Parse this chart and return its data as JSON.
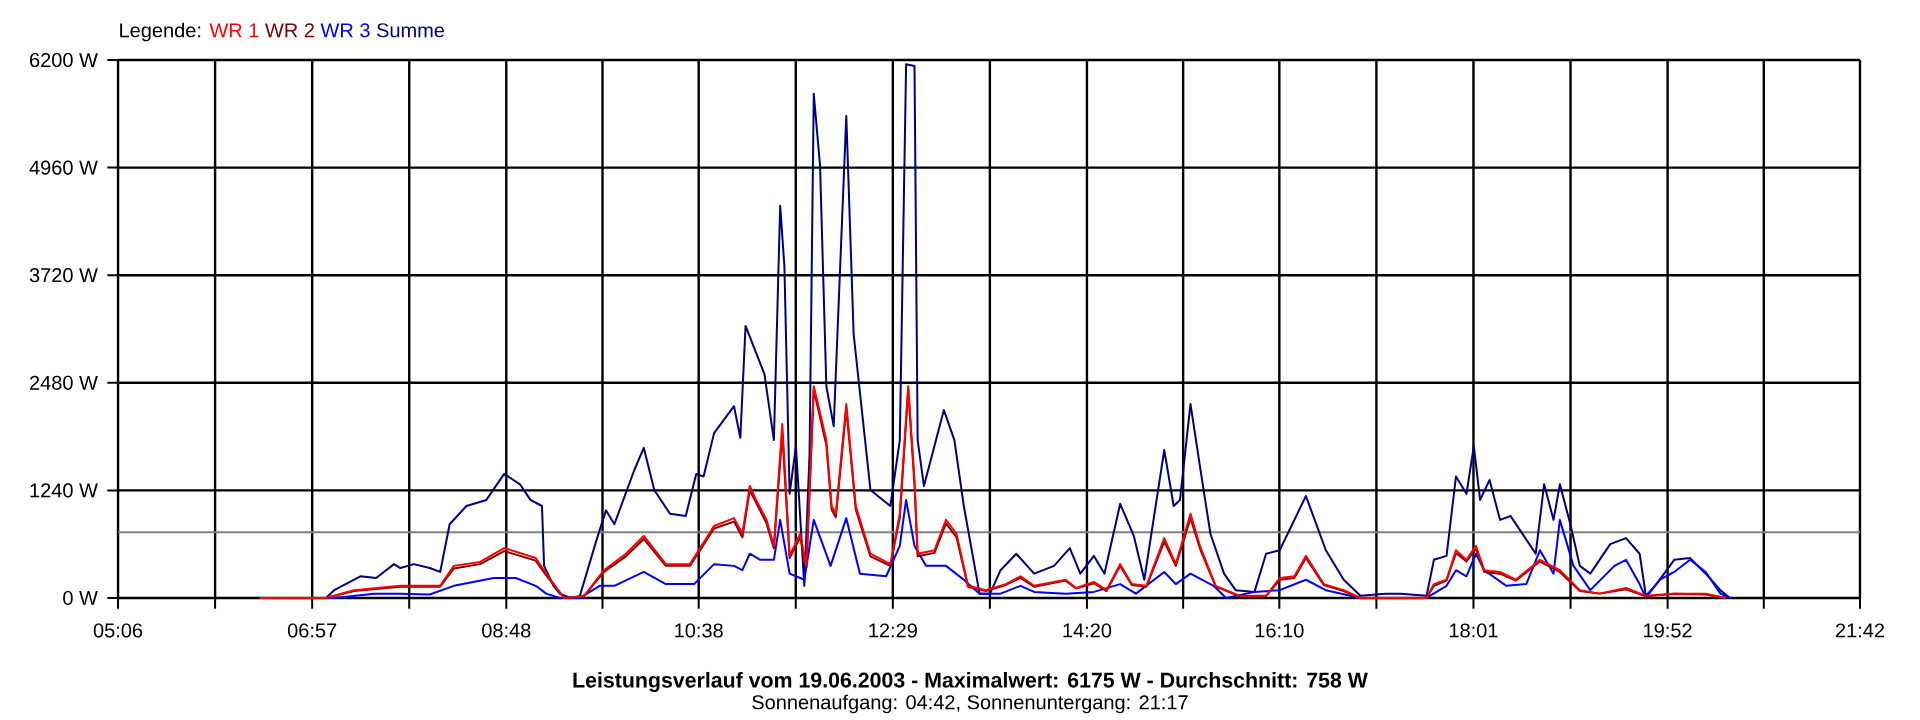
{
  "chart_data": {
    "type": "line",
    "title": "Leistungsverlauf vom 19.06.2003 - Maximalwert: 6175 W - Durchschnitt: 758 W",
    "subtitle": "Sonnenaufgang: 04:42, Sonnenuntergang: 21:17",
    "legend_title": "Legende:",
    "legend": "top left",
    "grid": true,
    "xlim": [
      5.1,
      21.7
    ],
    "xticks": [
      {
        "value": 5.1,
        "label": "05:06"
      },
      {
        "value": 6.025,
        "label": null
      },
      {
        "value": 6.95,
        "label": "06:57"
      },
      {
        "value": 7.875,
        "label": null
      },
      {
        "value": 8.8,
        "label": "08:48"
      },
      {
        "value": 9.7167,
        "label": null
      },
      {
        "value": 10.6333,
        "label": "10:38"
      },
      {
        "value": 11.5583,
        "label": null
      },
      {
        "value": 12.4833,
        "label": "12:29"
      },
      {
        "value": 13.4083,
        "label": null
      },
      {
        "value": 14.3333,
        "label": "14:20"
      },
      {
        "value": 15.25,
        "label": null
      },
      {
        "value": 16.1667,
        "label": "16:10"
      },
      {
        "value": 17.0917,
        "label": null
      },
      {
        "value": 18.0167,
        "label": "18:01"
      },
      {
        "value": 18.9417,
        "label": null
      },
      {
        "value": 19.8667,
        "label": "19:52"
      },
      {
        "value": 20.7833,
        "label": null
      },
      {
        "value": 21.7,
        "label": "21:42"
      }
    ],
    "ylim": [
      0,
      6200
    ],
    "yticks": [
      {
        "value": 0,
        "label": "0 W"
      },
      {
        "value": 1240,
        "label": "1240 W"
      },
      {
        "value": 2480,
        "label": "2480 W"
      },
      {
        "value": 3720,
        "label": "3720 W"
      },
      {
        "value": 4960,
        "label": "4960 W"
      },
      {
        "value": 6200,
        "label": "6200 W"
      }
    ],
    "ref_lines": [
      {
        "axis": "y",
        "value": 758,
        "color": "#808080"
      }
    ],
    "series": [
      {
        "name": "WR 1",
        "color": "#ff0000",
        "x": [
          6.45,
          7.08,
          7.35,
          7.79,
          8.07,
          8.17,
          8.3,
          8.55,
          8.78,
          9.08,
          9.18,
          9.35,
          9.54,
          9.73,
          9.94,
          10.11,
          10.32,
          10.55,
          10.78,
          10.97,
          11.05,
          11.12,
          11.18,
          11.28,
          11.35,
          11.43,
          11.5,
          11.6,
          11.66,
          11.73,
          11.85,
          11.9,
          11.94,
          12.04,
          12.13,
          12.27,
          12.46,
          12.55,
          12.63,
          12.69,
          12.72,
          12.88,
          12.99,
          13.09,
          13.2,
          13.37,
          13.56,
          13.7,
          13.83,
          14.13,
          14.23,
          14.4,
          14.52,
          14.65,
          14.76,
          14.9,
          15.07,
          15.18,
          15.32,
          15.41,
          15.56,
          15.79,
          16.04,
          16.17,
          16.31,
          16.42,
          16.59,
          16.78,
          16.94,
          17.57,
          17.64,
          17.76,
          17.85,
          17.95,
          18.04,
          18.12,
          18.27,
          18.42,
          18.65,
          18.84,
          19.03,
          19.22,
          19.47,
          19.66,
          19.93,
          20.23,
          20.42
        ],
        "values": [
          0,
          0,
          90,
          140,
          140,
          140,
          370,
          415,
          575,
          460,
          280,
          0,
          20,
          320,
          510,
          715,
          390,
          390,
          830,
          920,
          740,
          1290,
          1130,
          900,
          600,
          2005,
          485,
          740,
          370,
          2440,
          1820,
          1060,
          970,
          2235,
          1060,
          510,
          390,
          970,
          2440,
          1360,
          510,
          550,
          900,
          740,
          140,
          90,
          160,
          250,
          140,
          210,
          115,
          185,
          90,
          390,
          160,
          140,
          690,
          390,
          970,
          600,
          140,
          25,
          25,
          230,
          250,
          485,
          160,
          90,
          0,
          0,
          160,
          210,
          550,
          440,
          600,
          320,
          300,
          210,
          440,
          320,
          90,
          50,
          115,
          25,
          50,
          50,
          0
        ]
      },
      {
        "name": "WR 2",
        "color": "#800000",
        "x": [
          6.45,
          7.08,
          7.35,
          7.79,
          8.07,
          8.17,
          8.3,
          8.55,
          8.78,
          9.08,
          9.18,
          9.35,
          9.54,
          9.73,
          9.94,
          10.11,
          10.32,
          10.55,
          10.78,
          10.97,
          11.05,
          11.12,
          11.18,
          11.28,
          11.35,
          11.43,
          11.5,
          11.6,
          11.66,
          11.73,
          11.85,
          11.9,
          11.94,
          12.04,
          12.13,
          12.27,
          12.46,
          12.55,
          12.63,
          12.69,
          12.72,
          12.88,
          12.99,
          13.09,
          13.2,
          13.37,
          13.56,
          13.7,
          13.83,
          14.13,
          14.23,
          14.4,
          14.52,
          14.65,
          14.76,
          14.9,
          15.07,
          15.18,
          15.32,
          15.41,
          15.56,
          15.79,
          16.04,
          16.17,
          16.31,
          16.42,
          16.59,
          16.78,
          16.94,
          17.57,
          17.64,
          17.76,
          17.85,
          17.95,
          18.04,
          18.12,
          18.27,
          18.42,
          18.65,
          18.84,
          19.03,
          19.22,
          19.47,
          19.66,
          19.93,
          20.23,
          20.42
        ],
        "values": [
          0,
          0,
          80,
          130,
          130,
          130,
          340,
          390,
          540,
          430,
          260,
          0,
          20,
          300,
          480,
          680,
          370,
          370,
          800,
          880,
          700,
          1240,
          1100,
          860,
          570,
          1900,
          460,
          700,
          350,
          2400,
          1760,
          1020,
          930,
          2180,
          1020,
          480,
          370,
          930,
          2400,
          1300,
          480,
          520,
          860,
          700,
          130,
          80,
          150,
          230,
          130,
          200,
          110,
          170,
          80,
          370,
          150,
          130,
          650,
          370,
          920,
          570,
          130,
          20,
          20,
          210,
          230,
          460,
          150,
          80,
          0,
          0,
          140,
          200,
          520,
          420,
          570,
          300,
          280,
          200,
          420,
          300,
          80,
          50,
          100,
          20,
          50,
          40,
          0
        ]
      },
      {
        "name": "WR 3",
        "color": "#0000ff",
        "x": [
          6.45,
          7.16,
          7.54,
          7.79,
          8.07,
          8.3,
          8.68,
          8.89,
          9.08,
          9.18,
          9.31,
          9.5,
          9.69,
          9.83,
          10.11,
          10.32,
          10.59,
          10.78,
          10.97,
          11.05,
          11.12,
          11.22,
          11.35,
          11.41,
          11.5,
          11.64,
          11.73,
          11.89,
          12.04,
          12.17,
          12.42,
          12.55,
          12.61,
          12.69,
          12.8,
          12.99,
          13.16,
          13.31,
          13.51,
          13.7,
          13.83,
          14.13,
          14.4,
          14.65,
          14.8,
          15.07,
          15.18,
          15.32,
          15.54,
          15.66,
          15.93,
          16.17,
          16.42,
          16.61,
          16.94,
          17.57,
          17.76,
          17.85,
          17.95,
          18.04,
          18.12,
          18.33,
          18.52,
          18.65,
          18.78,
          18.84,
          18.97,
          19.13,
          19.36,
          19.47,
          19.6,
          19.66,
          19.79,
          19.93,
          20.08,
          20.23,
          20.37,
          20.46
        ],
        "values": [
          0,
          0,
          50,
          50,
          40,
          140,
          230,
          230,
          140,
          50,
          0,
          0,
          140,
          140,
          300,
          160,
          160,
          390,
          370,
          320,
          510,
          440,
          440,
          900,
          280,
          210,
          900,
          370,
          920,
          280,
          250,
          600,
          1130,
          600,
          370,
          370,
          210,
          50,
          50,
          140,
          70,
          50,
          70,
          160,
          50,
          300,
          160,
          280,
          140,
          0,
          70,
          90,
          210,
          90,
          0,
          0,
          140,
          320,
          250,
          510,
          320,
          140,
          160,
          550,
          280,
          900,
          370,
          90,
          370,
          440,
          160,
          0,
          210,
          300,
          440,
          300,
          50,
          0
        ]
      },
      {
        "name": "Summe",
        "color": "#000080",
        "x": [
          6.45,
          7.08,
          7.16,
          7.41,
          7.56,
          7.73,
          7.79,
          7.92,
          8.07,
          8.17,
          8.26,
          8.42,
          8.61,
          8.78,
          8.93,
          9.03,
          9.14,
          9.16,
          9.25,
          9.31,
          9.41,
          9.5,
          9.66,
          9.75,
          9.83,
          10.02,
          10.11,
          10.21,
          10.36,
          10.51,
          10.61,
          10.68,
          10.78,
          10.97,
          11.03,
          11.08,
          11.26,
          11.35,
          11.41,
          11.45,
          11.5,
          11.56,
          11.64,
          11.69,
          11.73,
          11.79,
          11.85,
          11.92,
          12.04,
          12.11,
          12.27,
          12.46,
          12.55,
          12.61,
          12.69,
          12.72,
          12.78,
          12.97,
          13.07,
          13.16,
          13.31,
          13.41,
          13.51,
          13.66,
          13.83,
          14.02,
          14.17,
          14.27,
          14.4,
          14.5,
          14.65,
          14.78,
          14.88,
          15.07,
          15.16,
          15.22,
          15.32,
          15.41,
          15.51,
          15.64,
          15.75,
          15.93,
          16.04,
          16.17,
          16.42,
          16.61,
          16.78,
          16.94,
          17.18,
          17.32,
          17.57,
          17.64,
          17.76,
          17.85,
          17.95,
          18.02,
          18.08,
          18.17,
          18.27,
          18.37,
          18.61,
          18.69,
          18.78,
          18.84,
          18.94,
          19.03,
          19.13,
          19.32,
          19.47,
          19.6,
          19.66,
          19.76,
          19.93,
          20.08,
          20.23,
          20.37,
          20.46
        ],
        "values": [
          0,
          0,
          90,
          250,
          230,
          390,
          345,
          390,
          345,
          300,
          850,
          1060,
          1130,
          1430,
          1310,
          1130,
          1060,
          370,
          140,
          50,
          0,
          20,
          670,
          1010,
          850,
          1475,
          1730,
          1245,
          970,
          945,
          1430,
          1400,
          1900,
          2210,
          1845,
          3135,
          2580,
          1820,
          4520,
          3825,
          1200,
          1750,
          140,
          1660,
          5810,
          4980,
          2440,
          1980,
          5555,
          3040,
          1245,
          1060,
          1820,
          6150,
          6130,
          1820,
          1290,
          2165,
          1820,
          1060,
          50,
          50,
          320,
          510,
          280,
          370,
          575,
          280,
          485,
          280,
          1085,
          715,
          210,
          1705,
          1060,
          1130,
          2235,
          1520,
          740,
          280,
          90,
          70,
          510,
          550,
          1175,
          550,
          210,
          25,
          50,
          50,
          25,
          440,
          485,
          1400,
          1200,
          1750,
          1130,
          1360,
          900,
          945,
          510,
          1310,
          900,
          1310,
          850,
          370,
          280,
          620,
          690,
          510,
          25,
          160,
          440,
          460,
          280,
          90,
          0
        ]
      }
    ]
  }
}
